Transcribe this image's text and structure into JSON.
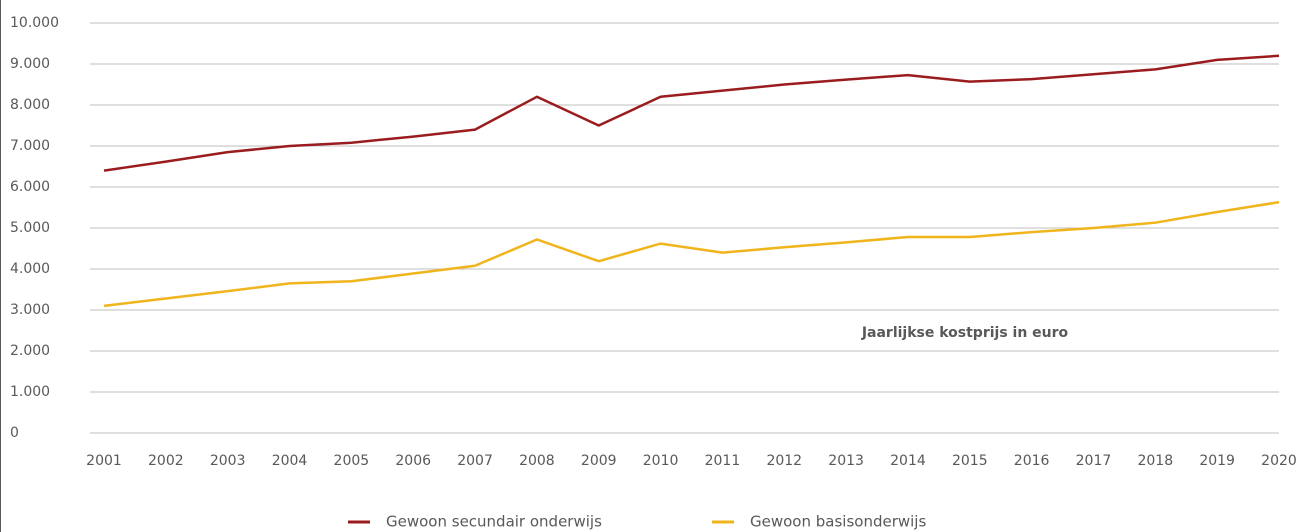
{
  "chart_data": {
    "type": "line",
    "annotation": "Jaarlijkse kostprijs in euro",
    "x": [
      2001,
      2002,
      2003,
      2004,
      2005,
      2006,
      2007,
      2008,
      2009,
      2010,
      2011,
      2012,
      2013,
      2014,
      2015,
      2016,
      2017,
      2018,
      2019,
      2020
    ],
    "xlim": [
      2001,
      2020
    ],
    "xticks": [
      2001,
      2002,
      2003,
      2004,
      2005,
      2006,
      2007,
      2008,
      2009,
      2010,
      2011,
      2012,
      2013,
      2014,
      2015,
      2016,
      2017,
      2018,
      2019,
      2020
    ],
    "ylim": [
      0,
      10000
    ],
    "yticks": [
      0,
      {
        "value": 1000,
        "label": "1.000"
      },
      {
        "value": 2000,
        "label": "2.000"
      },
      {
        "value": 3000,
        "label": "3.000"
      },
      {
        "value": 4000,
        "label": "4.000"
      },
      {
        "value": 5000,
        "label": "5.000"
      },
      {
        "value": 6000,
        "label": "6.000"
      },
      {
        "value": 7000,
        "label": "7.000"
      },
      {
        "value": 8000,
        "label": "8.000"
      },
      {
        "value": 9000,
        "label": "9.000"
      },
      {
        "value": 10000,
        "label": "10.000"
      }
    ],
    "grid": true,
    "legend": "bottom",
    "series": [
      {
        "name": "Gewoon secundair onderwijs",
        "color": "#9b1c1f",
        "values": [
          6400,
          6620,
          6850,
          7000,
          7080,
          7230,
          7400,
          8200,
          7500,
          8200,
          8350,
          8500,
          8620,
          8730,
          8570,
          8630,
          8750,
          8870,
          9100,
          9200
        ]
      },
      {
        "name": "Gewoon basisonderwijs",
        "color": "#f0b41c",
        "values": [
          3100,
          3280,
          3460,
          3650,
          3700,
          3890,
          4080,
          4720,
          4190,
          4620,
          4400,
          4530,
          4650,
          4780,
          4780,
          4900,
          5000,
          5130,
          5390,
          5630
        ]
      }
    ]
  }
}
